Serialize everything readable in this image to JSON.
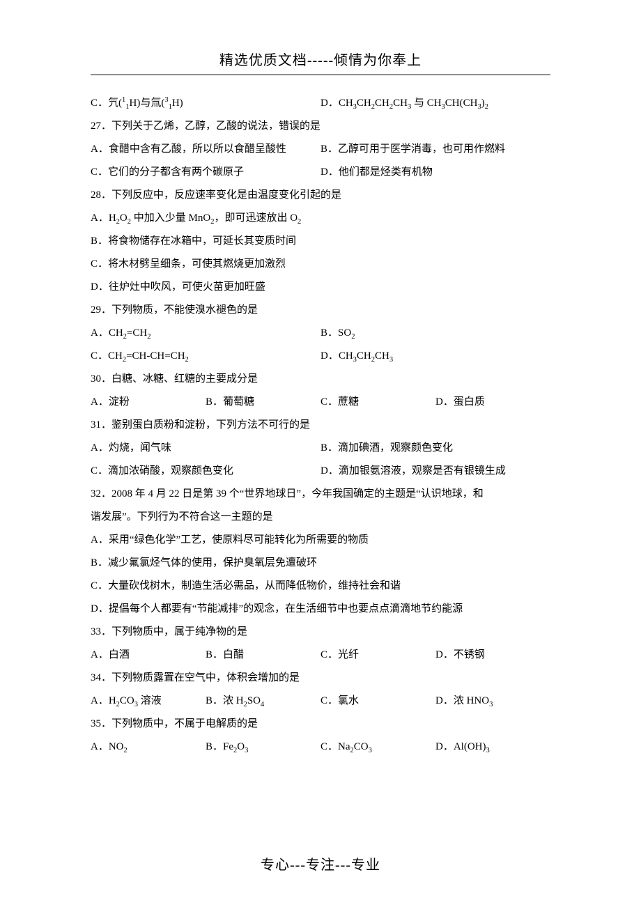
{
  "header": "精选优质文档-----倾情为你奉上",
  "footer": "专心---专注---专业",
  "q26": {
    "C_pre": "C．氕(",
    "C_iso1_mass": "1",
    "C_iso1_atom": "1",
    "C_mid1": "H)与氚(",
    "C_iso2_mass": "3",
    "C_iso2_atom": "1",
    "C_mid2": "H)",
    "D_pre": "D．CH",
    "D_t1": "CH",
    "D_t2": "CH",
    "D_t3": "CH",
    "D_and": " 与 CH",
    "D_t4": "CH(CH",
    "D_t5": ")"
  },
  "q27": {
    "stem": "27．下列关于乙烯，乙醇，乙酸的说法，错误的是",
    "A": "A．食醋中含有乙酸，所以所以食醋呈酸性",
    "B": "B．乙醇可用于医学消毒，也可用作燃料",
    "C": "C．它们的分子都含有两个碳原子",
    "D": "D．他们都是烃类有机物"
  },
  "q28": {
    "stem": "28．下列反应中，反应速率变化是由温度变化引起的是",
    "A_pre": "A．H",
    "A_o": "O",
    "A_mid": " 中加入少量 MnO",
    "A_tail": "，即可迅速放出 O",
    "B": "B．将食物储存在冰箱中，可延长其变质时间",
    "C": "C．将木材劈呈细条，可使其燃烧更加激烈",
    "D": "D．往炉灶中吹风，可使火苗更加旺盛"
  },
  "q29": {
    "stem": "29．下列物质，不能使溴水褪色的是",
    "A_pre": "A．CH",
    "A_eq": "=CH",
    "B_pre": "B．SO",
    "C_pre": "C．CH",
    "C_mid1": "=CH-CH=CH",
    "D_pre": "D．CH",
    "D_mid": "CH",
    "D_tail": "CH"
  },
  "q30": {
    "stem": "30．白糖、冰糖、红糖的主要成分是",
    "A": "A．淀粉",
    "B": "B．葡萄糖",
    "C": "C．蔗糖",
    "D": "D．蛋白质"
  },
  "q31": {
    "stem": "31．鉴别蛋白质粉和淀粉，下列方法不可行的是",
    "A": "A．灼烧，闻气味",
    "B": "B．滴加碘酒，观察颜色变化",
    "C": "C．滴加浓硝酸，观察颜色变化",
    "D": "D．滴加银氨溶液，观察是否有银镜生成"
  },
  "q32": {
    "stem1": "32．2008 年 4 月 22 日是第 39 个“世界地球日”，今年我国确定的主题是“认识地球，和",
    "stem2": "谐发展”。下列行为不符合这一主题的是",
    "A": "A．采用“绿色化学”工艺，使原料尽可能转化为所需要的物质",
    "B": "B．减少氟氯烃气体的使用，保护臭氧层免遭破环",
    "C": "C．大量砍伐树木，制造生活必需品，从而降低物价，维持社会和谐",
    "D": "D．提倡每个人都要有“节能减排”的观念，在生活细节中也要点点滴滴地节约能源"
  },
  "q33": {
    "stem": "33．下列物质中，属于纯净物的是",
    "A": "A．白酒",
    "B": "B．白醋",
    "C": "C．光纤",
    "D": "D．不锈钢"
  },
  "q34": {
    "stem": "34．下列物质露置在空气中，体积会增加的是",
    "A_pre": "A．H",
    "A_co": "CO",
    "A_tail": " 溶液",
    "B_pre": "B．浓 H",
    "B_so": "SO",
    "C": "C．氯水",
    "D_pre": "D．浓 HNO"
  },
  "q35": {
    "stem": "35．下列物质中，不属于电解质的是",
    "A_pre": "A．NO",
    "B_pre": "B．Fe",
    "B_o": "O",
    "C_pre": "C．Na",
    "C_co": "CO",
    "D_pre": "D．Al(OH)"
  }
}
